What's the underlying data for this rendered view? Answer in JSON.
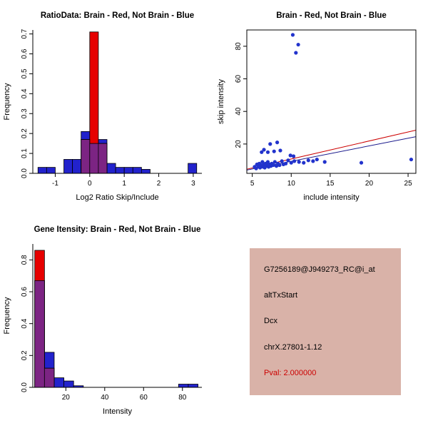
{
  "page": {
    "background": "#FFFFFF"
  },
  "chart_data": [
    {
      "id": "ratio-histogram",
      "type": "histogram",
      "title": "RatioData: Brain - Red, Not Brain - Blue",
      "xlabel": "Log2 Ratio Skip/Include",
      "ylabel": "Frequency",
      "xlim": [
        -1.65,
        3.25
      ],
      "ylim": [
        0,
        0.72
      ],
      "xticks": [
        [
          -1,
          "-1"
        ],
        [
          0,
          "0"
        ],
        [
          1,
          "1"
        ],
        [
          2,
          "2"
        ],
        [
          3,
          "3"
        ]
      ],
      "yticks": [
        [
          0,
          "0.0"
        ],
        [
          0.1,
          "0.1"
        ],
        [
          0.2,
          "0.2"
        ],
        [
          0.3,
          "0.3"
        ],
        [
          0.4,
          "0.4"
        ],
        [
          0.5,
          "0.5"
        ],
        [
          0.6,
          "0.6"
        ],
        [
          0.7,
          "0.7"
        ]
      ],
      "box": false,
      "grid": false,
      "overlap_color": "#7C2483",
      "series": [
        {
          "name": "Not Brain",
          "color": "#2222CC",
          "bins": [
            [
              -1.5,
              -1.25,
              0.03
            ],
            [
              -1.25,
              -1.0,
              0.03
            ],
            [
              -0.75,
              -0.5,
              0.07
            ],
            [
              -0.5,
              -0.25,
              0.07
            ],
            [
              -0.25,
              0,
              0.21
            ],
            [
              0,
              0.25,
              0.15
            ],
            [
              0.25,
              0.5,
              0.17
            ],
            [
              0.5,
              0.75,
              0.05
            ],
            [
              0.75,
              1,
              0.03
            ],
            [
              1,
              1.25,
              0.03
            ],
            [
              1.25,
              1.5,
              0.03
            ],
            [
              1.5,
              1.75,
              0.02
            ],
            [
              2.85,
              3.1,
              0.05
            ]
          ]
        },
        {
          "name": "Brain",
          "color": "#E60000",
          "bins": [
            [
              -0.25,
              0,
              0.17
            ],
            [
              0,
              0.25,
              0.71
            ],
            [
              0.25,
              0.5,
              0.15
            ]
          ]
        }
      ]
    },
    {
      "id": "intensity-scatter",
      "type": "scatter",
      "title": "Brain - Red, Not Brain - Blue",
      "xlabel": "include intensity",
      "ylabel": "skip intensity",
      "xlim": [
        4.3,
        26
      ],
      "ylim": [
        2,
        90
      ],
      "xticks": [
        [
          5,
          "5"
        ],
        [
          10,
          "10"
        ],
        [
          15,
          "15"
        ],
        [
          20,
          "20"
        ],
        [
          25,
          "25"
        ]
      ],
      "yticks": [
        [
          20,
          "20"
        ],
        [
          40,
          "40"
        ],
        [
          60,
          "60"
        ],
        [
          80,
          "80"
        ]
      ],
      "box": true,
      "grid": false,
      "point_color": "#2233CC",
      "points": [
        [
          5.3,
          6
        ],
        [
          5.5,
          5
        ],
        [
          5.6,
          7.5
        ],
        [
          5.8,
          6.2
        ],
        [
          5.9,
          8
        ],
        [
          6,
          5.5
        ],
        [
          6.1,
          7
        ],
        [
          6.2,
          6.5
        ],
        [
          6.2,
          15
        ],
        [
          6.3,
          9
        ],
        [
          6.4,
          6
        ],
        [
          6.5,
          7.5
        ],
        [
          6.5,
          16.5
        ],
        [
          6.6,
          5.5
        ],
        [
          6.7,
          8
        ],
        [
          6.8,
          6.5
        ],
        [
          6.9,
          7.2
        ],
        [
          7,
          9
        ],
        [
          7,
          15
        ],
        [
          7.1,
          6
        ],
        [
          7.2,
          7.5
        ],
        [
          7.3,
          20
        ],
        [
          7.4,
          6.5
        ],
        [
          7.5,
          8
        ],
        [
          7.7,
          7
        ],
        [
          7.8,
          15.5
        ],
        [
          7.9,
          9
        ],
        [
          8.1,
          6.5
        ],
        [
          8.2,
          21
        ],
        [
          8.3,
          8
        ],
        [
          8.5,
          7
        ],
        [
          8.6,
          16
        ],
        [
          8.8,
          9.5
        ],
        [
          9,
          7.5
        ],
        [
          9.3,
          8
        ],
        [
          9.6,
          10
        ],
        [
          9.9,
          13
        ],
        [
          10,
          8.5
        ],
        [
          10.2,
          87
        ],
        [
          10.3,
          12.5
        ],
        [
          10.4,
          9.5
        ],
        [
          10.6,
          76
        ],
        [
          10.9,
          81
        ],
        [
          11,
          9
        ],
        [
          11.6,
          8.5
        ],
        [
          12.2,
          10
        ],
        [
          12.8,
          9.5
        ],
        [
          13.3,
          10.5
        ],
        [
          14.3,
          9
        ],
        [
          19,
          8.5
        ],
        [
          25.4,
          10.5
        ]
      ],
      "lines": [
        {
          "name": "brain-fit",
          "color": "#CC0000",
          "x1": 4.3,
          "y1": 4.5,
          "x2": 26,
          "y2": 28.5
        },
        {
          "name": "not-brain-fit",
          "color": "#1A1A8C",
          "x1": 4.3,
          "y1": 4.0,
          "x2": 26,
          "y2": 24.5
        }
      ]
    },
    {
      "id": "gene-intensity-histogram",
      "type": "histogram",
      "title": "Gene Itensity: Brain - Red, Not Brain - Blue",
      "xlabel": "Intensity",
      "ylabel": "Frequency",
      "xlim": [
        3,
        90
      ],
      "ylim": [
        0,
        0.9
      ],
      "xticks": [
        [
          20,
          "20"
        ],
        [
          40,
          "40"
        ],
        [
          60,
          "60"
        ],
        [
          80,
          "80"
        ]
      ],
      "yticks": [
        [
          0,
          "0.0"
        ],
        [
          0.2,
          "0.2"
        ],
        [
          0.4,
          "0.4"
        ],
        [
          0.6,
          "0.6"
        ],
        [
          0.8,
          "0.8"
        ]
      ],
      "box": false,
      "grid": false,
      "overlap_color": "#7C2483",
      "series": [
        {
          "name": "Not Brain",
          "color": "#2222CC",
          "bins": [
            [
              4,
              9,
              0.67
            ],
            [
              9,
              14,
              0.22
            ],
            [
              14,
              19,
              0.06
            ],
            [
              19,
              24,
              0.04
            ],
            [
              24,
              29,
              0.01
            ],
            [
              78,
              83,
              0.02
            ],
            [
              83,
              88,
              0.02
            ]
          ]
        },
        {
          "name": "Brain",
          "color": "#E60000",
          "bins": [
            [
              4,
              9,
              0.86
            ],
            [
              9,
              14,
              0.12
            ]
          ]
        }
      ]
    }
  ],
  "info_panel": {
    "background": "#D9B2A8",
    "lines": [
      {
        "text": "G7256189@J949273_RC@i_at",
        "color": "#000000"
      },
      {
        "text": "altTxStart",
        "color": "#000000"
      },
      {
        "text": "Dcx",
        "color": "#000000"
      },
      {
        "text": "chrX.27801-1.12",
        "color": "#000000"
      },
      {
        "text": "Pval: 2.000000",
        "color": "#CC0000"
      }
    ]
  }
}
